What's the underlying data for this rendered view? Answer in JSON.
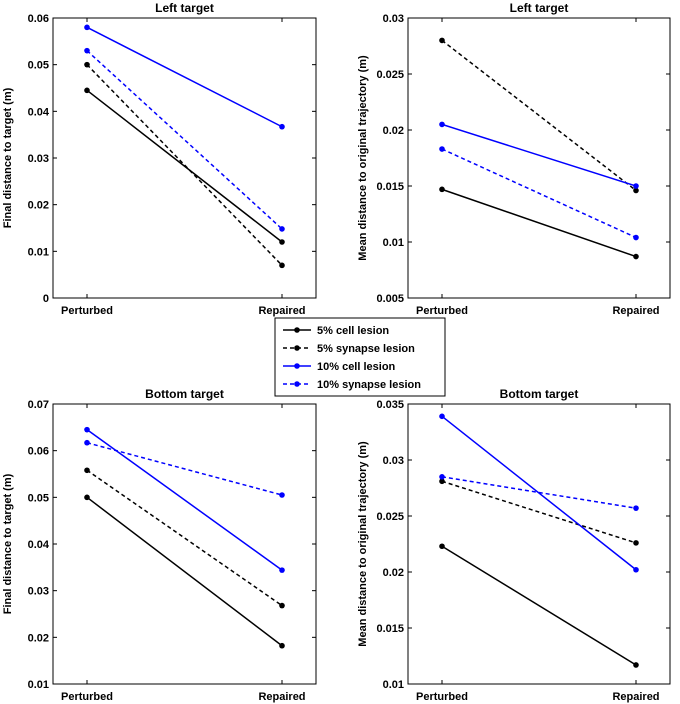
{
  "chart_data": [
    {
      "type": "line",
      "title": "Left target",
      "xlabel": "",
      "ylabel": "Final distance to target (m)",
      "categories": [
        "Perturbed",
        "Repaired"
      ],
      "ylim": [
        0,
        0.06
      ],
      "yticks": [
        "0",
        "0.01",
        "0.02",
        "0.03",
        "0.04",
        "0.05",
        "0.06"
      ],
      "series": [
        {
          "name": "5% cell lesion",
          "values": [
            0.0445,
            0.012
          ]
        },
        {
          "name": "5% synapse lesion",
          "values": [
            0.05,
            0.007
          ]
        },
        {
          "name": "10% cell lesion",
          "values": [
            0.058,
            0.0367
          ]
        },
        {
          "name": "10% synapse lesion",
          "values": [
            0.053,
            0.0148
          ]
        }
      ]
    },
    {
      "type": "line",
      "title": "Left target",
      "xlabel": "",
      "ylabel": "Mean distance to original trajectory (m)",
      "categories": [
        "Perturbed",
        "Repaired"
      ],
      "ylim": [
        0.005,
        0.03
      ],
      "yticks": [
        "0.005",
        "0.01",
        "0.015",
        "0.02",
        "0.025",
        "0.03"
      ],
      "series": [
        {
          "name": "5% cell lesion",
          "values": [
            0.0147,
            0.0087
          ]
        },
        {
          "name": "5% synapse lesion",
          "values": [
            0.028,
            0.0146
          ]
        },
        {
          "name": "10% cell lesion",
          "values": [
            0.0205,
            0.015
          ]
        },
        {
          "name": "10% synapse lesion",
          "values": [
            0.0183,
            0.0104
          ]
        }
      ]
    },
    {
      "type": "line",
      "title": "Bottom target",
      "xlabel": "",
      "ylabel": "Final distance to target (m)",
      "categories": [
        "Perturbed",
        "Repaired"
      ],
      "ylim": [
        0.01,
        0.07
      ],
      "yticks": [
        "0.01",
        "0.02",
        "0.03",
        "0.04",
        "0.05",
        "0.06",
        "0.07"
      ],
      "series": [
        {
          "name": "5% cell lesion",
          "values": [
            0.05,
            0.0182
          ]
        },
        {
          "name": "5% synapse lesion",
          "values": [
            0.0558,
            0.0268
          ]
        },
        {
          "name": "10% cell lesion",
          "values": [
            0.0645,
            0.0344
          ]
        },
        {
          "name": "10% synapse lesion",
          "values": [
            0.0617,
            0.0505
          ]
        }
      ]
    },
    {
      "type": "line",
      "title": "Bottom target",
      "xlabel": "",
      "ylabel": "Mean distance to original trajectory (m)",
      "categories": [
        "Perturbed",
        "Repaired"
      ],
      "ylim": [
        0.01,
        0.035
      ],
      "yticks": [
        "0.01",
        "0.015",
        "0.02",
        "0.025",
        "0.03",
        "0.035"
      ],
      "series": [
        {
          "name": "5% cell lesion",
          "values": [
            0.0223,
            0.0117
          ]
        },
        {
          "name": "5% synapse lesion",
          "values": [
            0.0281,
            0.0226
          ]
        },
        {
          "name": "10% cell lesion",
          "values": [
            0.0339,
            0.0202
          ]
        },
        {
          "name": "10% synapse lesion",
          "values": [
            0.0285,
            0.0257
          ]
        }
      ]
    }
  ],
  "legend": {
    "entries": [
      "5% cell lesion",
      "5% synapse lesion",
      "10% cell lesion",
      "10% synapse lesion"
    ]
  },
  "colors": {
    "black": "#000000",
    "blue": "#0000ff"
  },
  "styles": [
    "solid",
    "dashed",
    "solid",
    "dashed"
  ],
  "series_colors": [
    "#000000",
    "#000000",
    "#0000ff",
    "#0000ff"
  ]
}
